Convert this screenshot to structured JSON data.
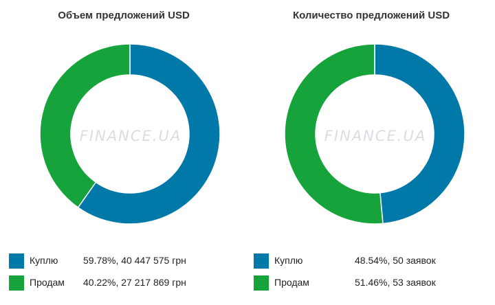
{
  "watermark": "FINANCE.UA",
  "chart_data": [
    {
      "type": "pie",
      "title": "Объем предложений USD",
      "categories": [
        "Куплю",
        "Продам"
      ],
      "values": [
        59.78,
        40.22
      ],
      "colors": [
        "#0078a8",
        "#17a33c"
      ],
      "legend": [
        {
          "label": "Куплю",
          "value": "59.78%, 40 447 575 грн"
        },
        {
          "label": "Продам",
          "value": "40.22%, 27 217 869 грн"
        }
      ],
      "legend_position": "bottom"
    },
    {
      "type": "pie",
      "title": "Количество предложений USD",
      "categories": [
        "Куплю",
        "Продам"
      ],
      "values": [
        48.54,
        51.46
      ],
      "colors": [
        "#0078a8",
        "#17a33c"
      ],
      "legend": [
        {
          "label": "Куплю",
          "value": "48.54%, 50 заявок"
        },
        {
          "label": "Продам",
          "value": "51.46%, 53 заявок"
        }
      ],
      "legend_position": "bottom"
    }
  ]
}
